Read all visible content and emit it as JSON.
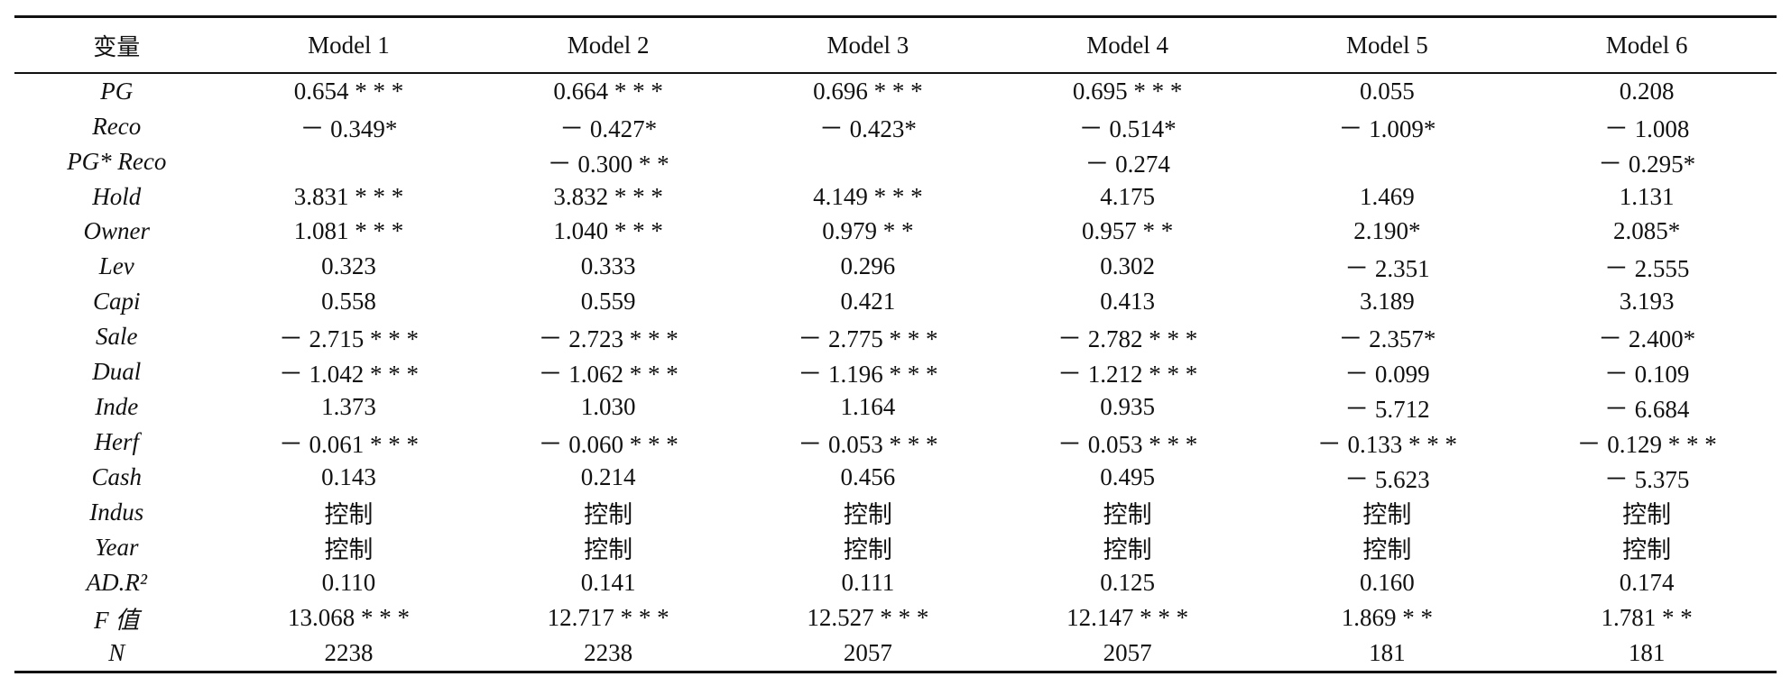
{
  "header": {
    "variable": "变量",
    "models": [
      "Model 1",
      "Model 2",
      "Model 3",
      "Model 4",
      "Model 5",
      "Model 6"
    ]
  },
  "rows": [
    {
      "var": "PG",
      "values": [
        "0.654 * * *",
        "0.664 * * *",
        "0.696 * * *",
        "0.695 * * *",
        "0.055",
        "0.208"
      ]
    },
    {
      "var": "Reco",
      "values": [
        "－ 0.349*",
        "－ 0.427*",
        "－ 0.423*",
        "－ 0.514*",
        "－ 1.009*",
        "－ 1.008"
      ]
    },
    {
      "var": "PG* Reco",
      "values": [
        "",
        "－ 0.300 * *",
        "",
        "－ 0.274",
        "",
        "－ 0.295*"
      ]
    },
    {
      "var": "Hold",
      "values": [
        "3.831 * * *",
        "3.832 * * *",
        "4.149 * * *",
        "4.175",
        "1.469",
        "1.131"
      ]
    },
    {
      "var": "Owner",
      "values": [
        "1.081 * * *",
        "1.040 * * *",
        "0.979 * *",
        "0.957 * *",
        "2.190*",
        "2.085*"
      ]
    },
    {
      "var": "Lev",
      "values": [
        "0.323",
        "0.333",
        "0.296",
        "0.302",
        "－ 2.351",
        "－ 2.555"
      ]
    },
    {
      "var": "Capi",
      "values": [
        "0.558",
        "0.559",
        "0.421",
        "0.413",
        "3.189",
        "3.193"
      ]
    },
    {
      "var": "Sale",
      "values": [
        "－ 2.715 * * *",
        "－ 2.723 * * *",
        "－ 2.775 * * *",
        "－ 2.782 * * *",
        "－ 2.357*",
        "－ 2.400*"
      ]
    },
    {
      "var": "Dual",
      "values": [
        "－ 1.042 * * *",
        "－ 1.062 * * *",
        "－ 1.196 * * *",
        "－ 1.212 * * *",
        "－ 0.099",
        "－ 0.109"
      ]
    },
    {
      "var": "Inde",
      "values": [
        "1.373",
        "1.030",
        "1.164",
        "0.935",
        "－ 5.712",
        "－ 6.684"
      ]
    },
    {
      "var": "Herf",
      "values": [
        "－ 0.061 * * *",
        "－ 0.060 * * *",
        "－ 0.053 * * *",
        "－ 0.053 * * *",
        "－ 0.133 * * *",
        "－ 0.129 * * *"
      ]
    },
    {
      "var": "Cash",
      "values": [
        "0.143",
        "0.214",
        "0.456",
        "0.495",
        "－ 5.623",
        "－ 5.375"
      ]
    },
    {
      "var": "Indus",
      "values": [
        "控制",
        "控制",
        "控制",
        "控制",
        "控制",
        "控制"
      ]
    },
    {
      "var": "Year",
      "values": [
        "控制",
        "控制",
        "控制",
        "控制",
        "控制",
        "控制"
      ]
    },
    {
      "var": "AD.R²",
      "values": [
        "0.110",
        "0.141",
        "0.111",
        "0.125",
        "0.160",
        "0.174"
      ]
    },
    {
      "var": "F 值",
      "values": [
        "13.068 * * *",
        "12.717 * * *",
        "12.527 * * *",
        "12.147 * * *",
        "1.869 * *",
        "1.781 * *"
      ]
    },
    {
      "var": "N",
      "values": [
        "2238",
        "2238",
        "2057",
        "2057",
        "181",
        "181"
      ]
    }
  ]
}
